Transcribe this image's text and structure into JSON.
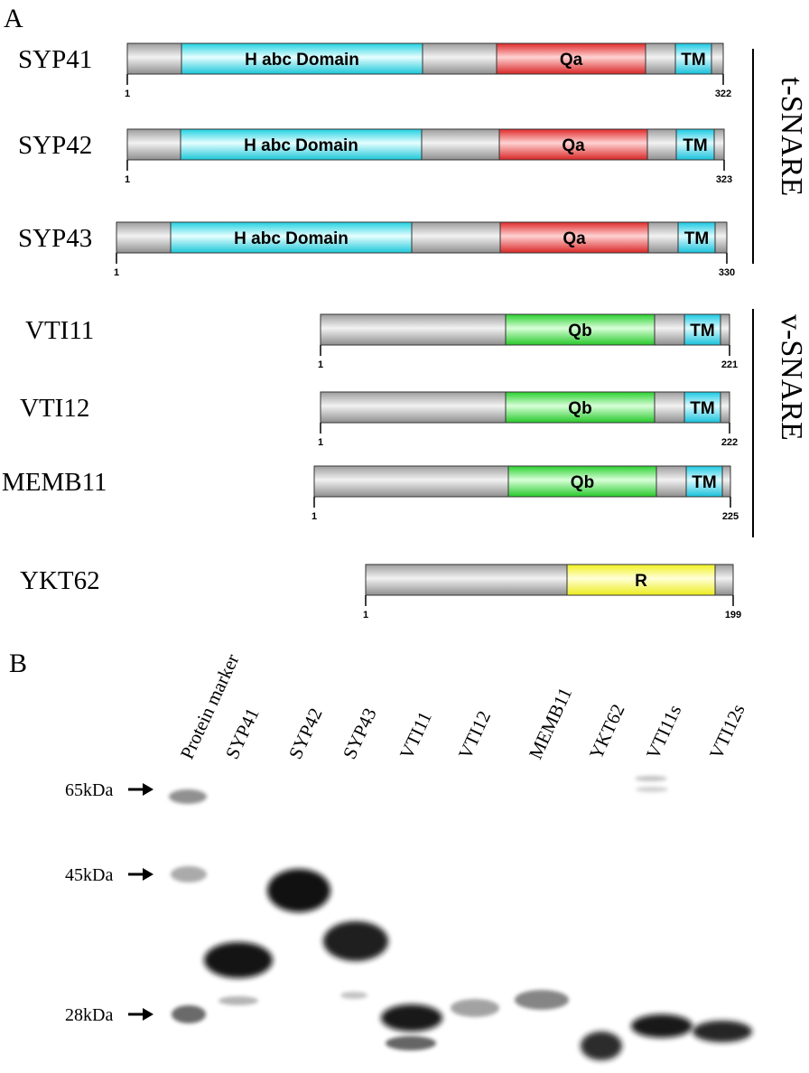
{
  "panel_a": {
    "label": "A",
    "groups": [
      {
        "name": "t-SNARE"
      },
      {
        "name": "v-SNARE"
      }
    ],
    "proteins": [
      {
        "name": "SYP41",
        "start": "1",
        "end": "322",
        "domains": [
          {
            "label": "H abc Domain",
            "type": "habc"
          },
          {
            "label": "Qa",
            "type": "qa"
          },
          {
            "label": "TM",
            "type": "tm"
          }
        ]
      },
      {
        "name": "SYP42",
        "start": "1",
        "end": "323",
        "domains": [
          {
            "label": "H abc Domain",
            "type": "habc"
          },
          {
            "label": "Qa",
            "type": "qa"
          },
          {
            "label": "TM",
            "type": "tm"
          }
        ]
      },
      {
        "name": "SYP43",
        "start": "1",
        "end": "330",
        "domains": [
          {
            "label": "H abc Domain",
            "type": "habc"
          },
          {
            "label": "Qa",
            "type": "qa"
          },
          {
            "label": "TM",
            "type": "tm"
          }
        ]
      },
      {
        "name": "VTI11",
        "start": "1",
        "end": "221",
        "domains": [
          {
            "label": "Qb",
            "type": "qb"
          },
          {
            "label": "TM",
            "type": "tm"
          }
        ]
      },
      {
        "name": "VTI12",
        "start": "1",
        "end": "222",
        "domains": [
          {
            "label": "Qb",
            "type": "qb"
          },
          {
            "label": "TM",
            "type": "tm"
          }
        ]
      },
      {
        "name": "MEMB11",
        "start": "1",
        "end": "225",
        "domains": [
          {
            "label": "Qb",
            "type": "qb"
          },
          {
            "label": "TM",
            "type": "tm"
          }
        ]
      },
      {
        "name": "YKT62",
        "start": "1",
        "end": "199",
        "domains": [
          {
            "label": "R",
            "type": "r"
          }
        ]
      }
    ],
    "colors": {
      "backbone": "#b8b8b8",
      "habc": "#33e3ee",
      "qa": "#f04848",
      "qb": "#46e04a",
      "tm": "#35d8ee",
      "r": "#fbfb3a"
    }
  },
  "panel_b": {
    "label": "B",
    "lanes": [
      "Protein marker",
      "SYP41",
      "SYP42",
      "SYP43",
      "VTI11",
      "VTI12",
      "MEMB11",
      "YKT62",
      "VTI11s",
      "VTI12s"
    ],
    "markers": [
      {
        "label": "65kDa"
      },
      {
        "label": "45kDa"
      },
      {
        "label": "28kDa"
      }
    ]
  }
}
